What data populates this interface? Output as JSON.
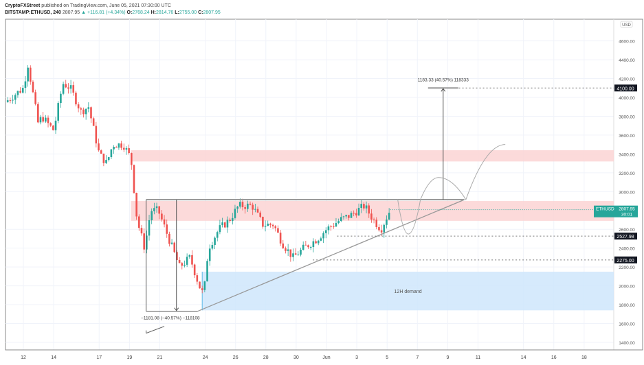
{
  "header": {
    "author": "CryptoFXStreet",
    "published": "published on TradingView.com, June 05, 2021 07:30:00 UTC",
    "symbol": "BITSTAMP:ETHUSD, 240",
    "last": "2807.95",
    "change": "▲ +116.81 (+4.34%)",
    "o_label": "O:",
    "o": "2768.24",
    "h_label": "H:",
    "h": "2814.76",
    "l_label": "L:",
    "l": "2755.00",
    "c_label": "C:",
    "c": "2807.95"
  },
  "chart_data": {
    "type": "candlestick",
    "currency": "USD",
    "y_ticks": [
      4600,
      4400,
      4200,
      4000,
      3800,
      3600,
      3400,
      3200,
      3000,
      2600,
      2400,
      2200,
      2000,
      1800,
      1600,
      1400
    ],
    "ylim": [
      1300,
      4800
    ],
    "x_ticks": [
      {
        "day": 12,
        "label": "12"
      },
      {
        "day": 14,
        "label": "14"
      },
      {
        "day": 17,
        "label": "17"
      },
      {
        "day": 19,
        "label": "19"
      },
      {
        "day": 21,
        "label": "21"
      },
      {
        "day": 24,
        "label": "24"
      },
      {
        "day": 26,
        "label": "26"
      },
      {
        "day": 28,
        "label": "28"
      },
      {
        "day": 30,
        "label": "30"
      },
      {
        "day": 32,
        "label": "Jun"
      },
      {
        "day": 34,
        "label": "3"
      },
      {
        "day": 36,
        "label": "5"
      },
      {
        "day": 38,
        "label": "7"
      },
      {
        "day": 40,
        "label": "9"
      },
      {
        "day": 42,
        "label": "11"
      },
      {
        "day": 45,
        "label": "14"
      },
      {
        "day": 47,
        "label": "16"
      },
      {
        "day": 49,
        "label": "18"
      }
    ],
    "price_path": [
      [
        10.8,
        3950
      ],
      [
        12,
        4100
      ],
      [
        12.3,
        4350
      ],
      [
        13,
        3700
      ],
      [
        13.2,
        3800
      ],
      [
        14,
        3650
      ],
      [
        14.6,
        4150
      ],
      [
        15.1,
        4100
      ],
      [
        15.8,
        3850
      ],
      [
        16.3,
        3900
      ],
      [
        17,
        3400
      ],
      [
        17.5,
        3300
      ],
      [
        17.9,
        3500
      ],
      [
        18.6,
        3500
      ],
      [
        19.1,
        3350
      ],
      [
        19.5,
        2700
      ],
      [
        20,
        2400
      ],
      [
        20.4,
        2800
      ],
      [
        20.9,
        2800
      ],
      [
        21.6,
        2500
      ],
      [
        22.3,
        2200
      ],
      [
        23,
        2300
      ],
      [
        23.6,
        2000
      ],
      [
        23.9,
        1900
      ],
      [
        24.2,
        2400
      ],
      [
        24.9,
        2600
      ],
      [
        25.6,
        2700
      ],
      [
        26.2,
        2850
      ],
      [
        27.1,
        2850
      ],
      [
        27.8,
        2650
      ],
      [
        28.5,
        2650
      ],
      [
        29.1,
        2450
      ],
      [
        29.8,
        2300
      ],
      [
        30.5,
        2400
      ],
      [
        31.4,
        2500
      ],
      [
        32,
        2600
      ],
      [
        32.9,
        2700
      ],
      [
        33.6,
        2750
      ],
      [
        34.5,
        2850
      ],
      [
        35.1,
        2700
      ],
      [
        35.6,
        2600
      ],
      [
        36.2,
        2808
      ]
    ],
    "zones": [
      {
        "name": "supply-upper",
        "from": 3320,
        "to": 3440,
        "start_day": 19.1
      },
      {
        "name": "supply-lower",
        "from": 2690,
        "to": 2900,
        "start_day": 19.1
      },
      {
        "name": "demand",
        "label": "12H demand",
        "from": 1740,
        "to": 2150,
        "start_day": 23.8
      }
    ],
    "levels": [
      {
        "price": 4100,
        "label": "4100.00",
        "start_day": 39.6
      },
      {
        "price": 2527.98,
        "label": "2527.98",
        "start_day": 32.7
      },
      {
        "price": 2275,
        "label": "2275.00",
        "start_day": 31.1
      }
    ],
    "triangle": {
      "resistance": 2915,
      "support_from": [
        23.5,
        1730
      ],
      "apex": [
        41.1,
        2915
      ]
    },
    "measure_up": {
      "label": "1183.33 (40.57%) 118333",
      "from": 2915,
      "to": 4100,
      "day": 39.7
    },
    "measure_down": {
      "label": "−1181.08 (−40.57%) −118108",
      "from": 2915,
      "to": 1730,
      "day": 22.1
    },
    "projection": [
      [
        36.7,
        2915
      ],
      [
        37.4,
        2550
      ],
      [
        38.2,
        2915
      ],
      [
        39.4,
        3150
      ],
      [
        41.2,
        2915
      ],
      [
        43.8,
        3500
      ]
    ],
    "current": {
      "symbol": "ETHUSD",
      "price": "2807.95",
      "countdown": "30:01",
      "value": 2807.95
    }
  },
  "colors": {
    "up": "#26a69a",
    "down": "#ef5350",
    "zone_red": "#fbd3d3",
    "zone_blue": "#cfe6fb"
  }
}
